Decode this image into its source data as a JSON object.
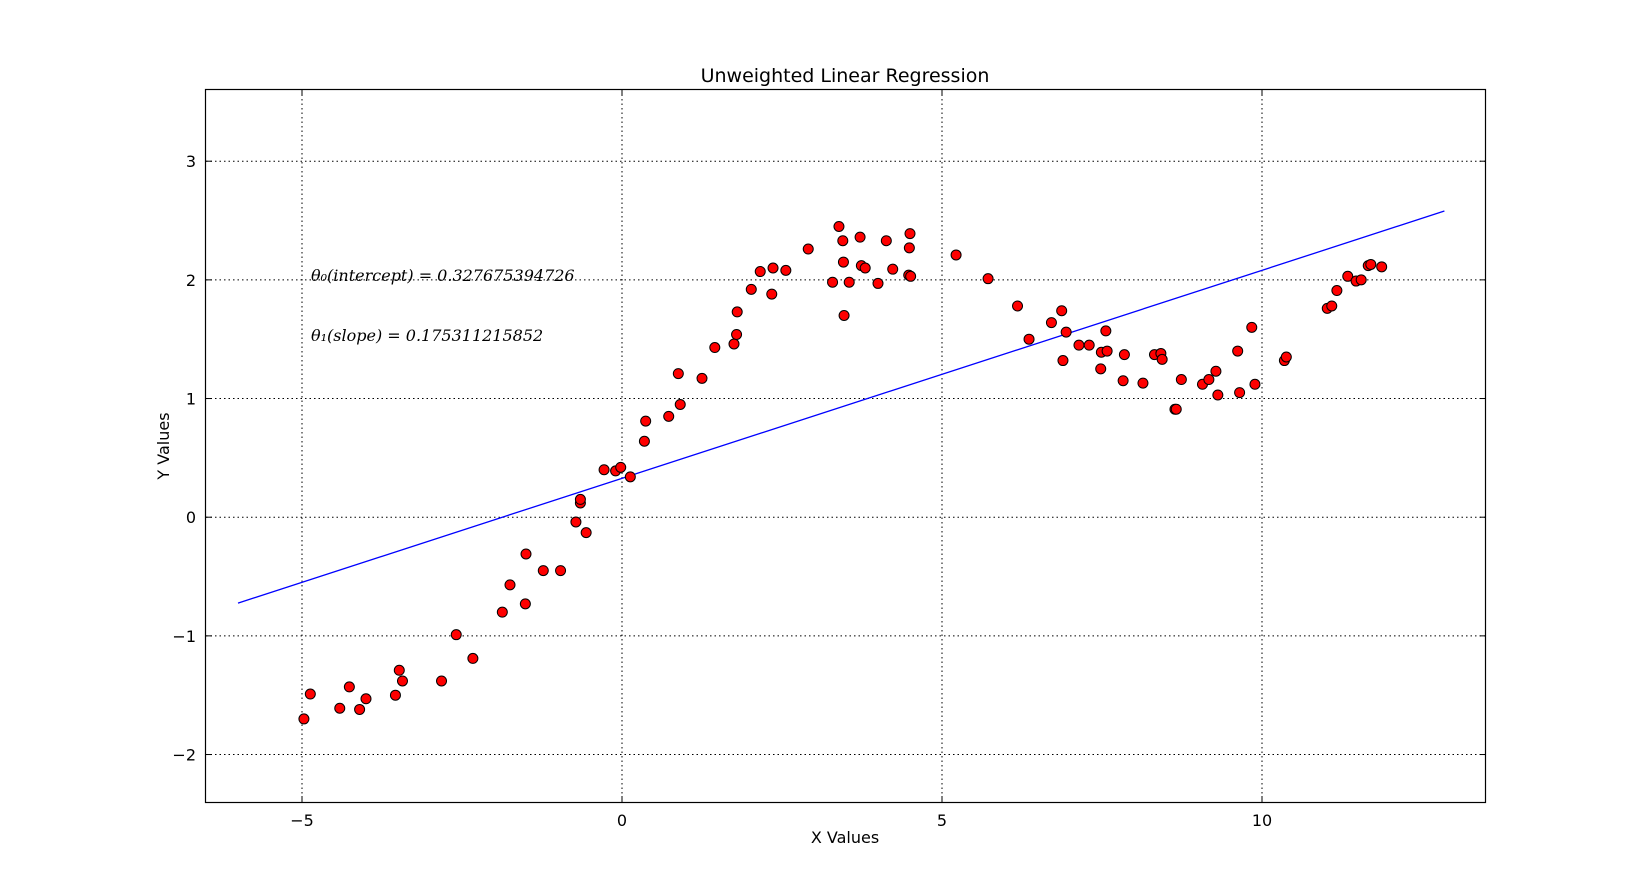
{
  "chart_data": {
    "type": "scatter",
    "title": "Unweighted Linear Regression",
    "xlabel": "X Values",
    "ylabel": "Y Values",
    "xlim": [
      -6.5,
      13.5
    ],
    "ylim": [
      -2.4,
      3.6
    ],
    "xticks": [
      -5,
      0,
      5,
      10
    ],
    "yticks": [
      -2,
      -1,
      0,
      1,
      2,
      3
    ],
    "xtick_labels": [
      "−5",
      "0",
      "5",
      "10"
    ],
    "ytick_labels": [
      "−2",
      "−1",
      "0",
      "1",
      "2",
      "3"
    ],
    "grid": true,
    "colors": {
      "points": "#ff0000",
      "point_edge": "#000000",
      "line": "#0000ff"
    },
    "annotations": {
      "theta0": "θ₀(intercept) = 0.327675394726",
      "theta1": "θ₁(slope) = 0.175311215852"
    },
    "series": [
      {
        "type": "scatter",
        "points": [
          [
            -4.97,
            -1.7
          ],
          [
            -4.87,
            -1.49
          ],
          [
            -4.41,
            -1.61
          ],
          [
            -4.26,
            -1.43
          ],
          [
            -4.1,
            -1.62
          ],
          [
            -4.0,
            -1.53
          ],
          [
            -3.54,
            -1.5
          ],
          [
            -3.48,
            -1.29
          ],
          [
            -3.43,
            -1.38
          ],
          [
            -2.82,
            -1.38
          ],
          [
            -2.59,
            -0.99
          ],
          [
            -2.33,
            -1.19
          ],
          [
            -1.87,
            -0.8
          ],
          [
            -1.75,
            -0.57
          ],
          [
            -1.51,
            -0.73
          ],
          [
            -1.5,
            -0.31
          ],
          [
            -1.23,
            -0.45
          ],
          [
            -0.96,
            -0.45
          ],
          [
            -0.72,
            -0.04
          ],
          [
            -0.65,
            0.12
          ],
          [
            -0.65,
            0.15
          ],
          [
            -0.56,
            -0.13
          ],
          [
            -0.28,
            0.4
          ],
          [
            -0.1,
            0.39
          ],
          [
            -0.02,
            0.42
          ],
          [
            0.13,
            0.34
          ],
          [
            0.35,
            0.64
          ],
          [
            0.37,
            0.81
          ],
          [
            0.73,
            0.85
          ],
          [
            0.88,
            1.21
          ],
          [
            0.91,
            0.95
          ],
          [
            1.25,
            1.17
          ],
          [
            1.45,
            1.43
          ],
          [
            1.75,
            1.46
          ],
          [
            1.79,
            1.54
          ],
          [
            1.8,
            1.73
          ],
          [
            2.02,
            1.92
          ],
          [
            2.16,
            2.07
          ],
          [
            2.34,
            1.88
          ],
          [
            2.36,
            2.1
          ],
          [
            2.56,
            2.08
          ],
          [
            2.91,
            2.26
          ],
          [
            3.29,
            1.98
          ],
          [
            3.39,
            2.45
          ],
          [
            3.45,
            2.33
          ],
          [
            3.46,
            2.15
          ],
          [
            3.47,
            1.7
          ],
          [
            3.55,
            1.98
          ],
          [
            3.72,
            2.36
          ],
          [
            3.74,
            2.12
          ],
          [
            3.8,
            2.1
          ],
          [
            4.0,
            1.97
          ],
          [
            4.13,
            2.33
          ],
          [
            4.23,
            2.09
          ],
          [
            4.48,
            2.04
          ],
          [
            4.49,
            2.27
          ],
          [
            4.5,
            2.39
          ],
          [
            4.51,
            2.03
          ],
          [
            5.22,
            2.21
          ],
          [
            5.72,
            2.01
          ],
          [
            6.18,
            1.78
          ],
          [
            6.36,
            1.5
          ],
          [
            6.71,
            1.64
          ],
          [
            6.87,
            1.74
          ],
          [
            6.89,
            1.32
          ],
          [
            6.94,
            1.56
          ],
          [
            7.14,
            1.45
          ],
          [
            7.3,
            1.45
          ],
          [
            7.48,
            1.25
          ],
          [
            7.49,
            1.39
          ],
          [
            7.56,
            1.57
          ],
          [
            7.58,
            1.4
          ],
          [
            7.83,
            1.15
          ],
          [
            7.85,
            1.37
          ],
          [
            8.14,
            1.13
          ],
          [
            8.32,
            1.37
          ],
          [
            8.42,
            1.38
          ],
          [
            8.44,
            1.33
          ],
          [
            8.64,
            0.91
          ],
          [
            8.66,
            0.91
          ],
          [
            8.74,
            1.16
          ],
          [
            9.07,
            1.12
          ],
          [
            9.17,
            1.16
          ],
          [
            9.28,
            1.23
          ],
          [
            9.31,
            1.03
          ],
          [
            9.62,
            1.4
          ],
          [
            9.65,
            1.05
          ],
          [
            9.84,
            1.6
          ],
          [
            9.89,
            1.12
          ],
          [
            10.35,
            1.32
          ],
          [
            10.38,
            1.35
          ],
          [
            11.02,
            1.76
          ],
          [
            11.09,
            1.78
          ],
          [
            11.17,
            1.91
          ],
          [
            11.34,
            2.03
          ],
          [
            11.47,
            1.99
          ],
          [
            11.55,
            2.0
          ],
          [
            11.66,
            2.12
          ],
          [
            11.7,
            2.13
          ],
          [
            11.87,
            2.11
          ]
        ]
      },
      {
        "type": "line",
        "points": [
          [
            -6.0,
            -0.724
          ],
          [
            12.85,
            2.58
          ]
        ]
      }
    ]
  }
}
